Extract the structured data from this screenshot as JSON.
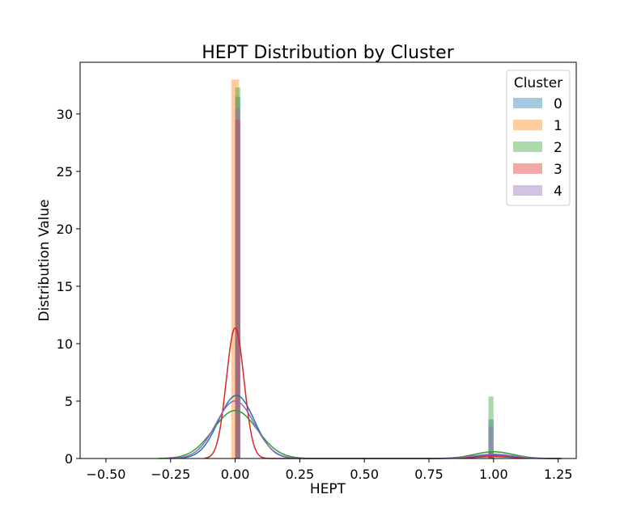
{
  "chart_data": {
    "type": "bar",
    "title": "HEPT Distribution by Cluster",
    "xlabel": "HEPT",
    "ylabel": "Distribution Value",
    "xlim": [
      -0.6,
      1.32
    ],
    "ylim": [
      0,
      34.5
    ],
    "xticks": [
      -0.5,
      -0.25,
      0.0,
      0.25,
      0.5,
      0.75,
      1.0,
      1.25
    ],
    "xtick_labels": [
      "−0.50",
      "−0.25",
      "0.00",
      "0.25",
      "0.50",
      "0.75",
      "1.00",
      "1.25"
    ],
    "yticks": [
      0,
      5,
      10,
      15,
      20,
      25,
      30
    ],
    "ytick_labels": [
      "0",
      "5",
      "10",
      "15",
      "20",
      "25",
      "30"
    ],
    "legend": {
      "title": "Cluster",
      "placement": "top-right",
      "entries": [
        "0",
        "1",
        "2",
        "3",
        "4"
      ]
    },
    "series": [
      {
        "name": "0",
        "color": "#1f77b4",
        "bars": [
          {
            "x0": 0.0,
            "x1": 0.02,
            "height": 31.5
          },
          {
            "x0": 0.98,
            "x1": 1.0,
            "height": 3.4
          }
        ],
        "kde": {
          "mean": 0.005,
          "std": 0.069,
          "weight": 0.95
        }
      },
      {
        "name": "1",
        "color": "#ff7f0e",
        "bars": [
          {
            "x0": -0.015,
            "x1": 0.015,
            "height": 33.0
          }
        ],
        "kde": null
      },
      {
        "name": "2",
        "color": "#2ca02c",
        "bars": [
          {
            "x0": 0.0,
            "x1": 0.02,
            "height": 32.3
          },
          {
            "x0": 0.98,
            "x1": 1.0,
            "height": 5.4
          }
        ],
        "kde": {
          "mean": 0.0,
          "std": 0.085,
          "weight": 0.89
        }
      },
      {
        "name": "3",
        "color": "#d62728",
        "bars": [
          {
            "x0": 0.0,
            "x1": 0.02,
            "height": 29.5
          },
          {
            "x0": 0.98,
            "x1": 1.0,
            "height": 0.6
          }
        ],
        "kde": {
          "mean": 0.0,
          "std": 0.034,
          "weight": 0.97
        }
      },
      {
        "name": "4",
        "color": "#9467bd",
        "bars": [
          {
            "x0": 0.0,
            "x1": 0.02,
            "height": 30.5
          },
          {
            "x0": 0.98,
            "x1": 1.0,
            "height": 2.8
          }
        ],
        "kde": {
          "mean": 0.0,
          "std": 0.074,
          "weight": 0.93
        }
      }
    ],
    "grid": false
  }
}
